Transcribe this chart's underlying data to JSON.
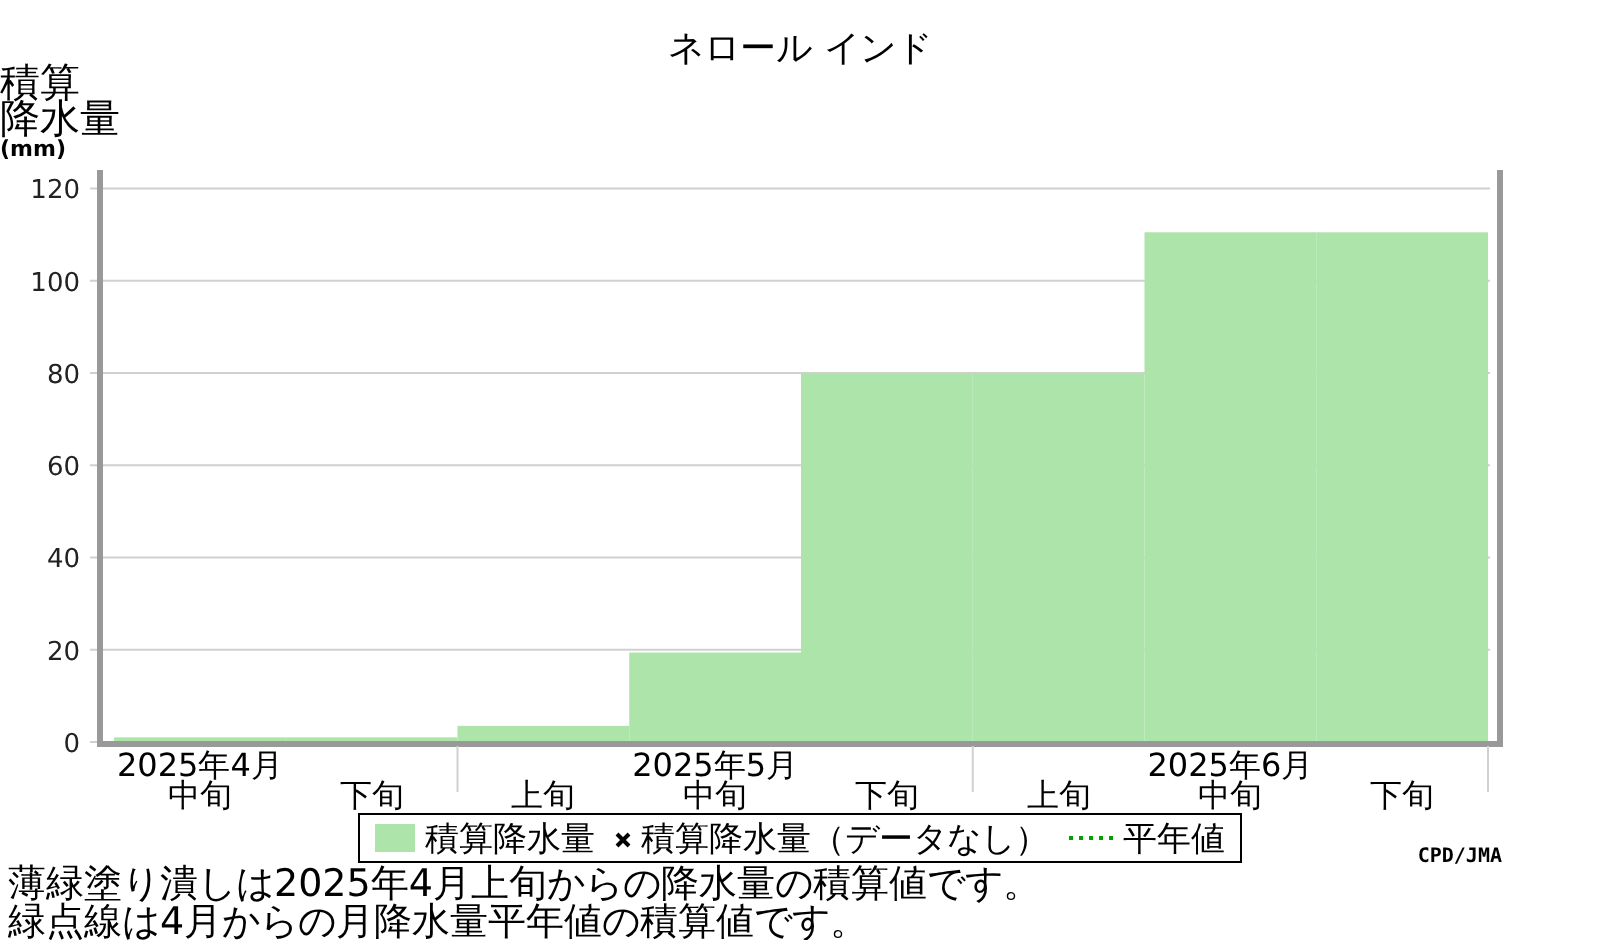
{
  "chart_data": {
    "type": "bar",
    "title": "ネロール インド",
    "ylabel": "積算降水量(mm)",
    "categories": [
      "2025年4月中旬",
      "下旬",
      "上旬",
      "2025年5月中旬",
      "下旬",
      "上旬",
      "2025年6月中旬",
      "下旬"
    ],
    "series": [
      {
        "name": "積算降水量",
        "color": "#ace4aa",
        "values": [
          1,
          1,
          3.5,
          19.4,
          80,
          80,
          110.5,
          110.5
        ]
      },
      {
        "name": "積算降水量（データなし）",
        "type": "scatter",
        "marker": "cross",
        "color": "#000000",
        "values": [
          null,
          null,
          null,
          null,
          null,
          null,
          null,
          null
        ]
      },
      {
        "name": "平年値",
        "type": "line",
        "line_style": "dotted",
        "color": "#00a000",
        "values": [
          null,
          null,
          null,
          null,
          null,
          null,
          null,
          null
        ]
      }
    ],
    "ylim": [
      0,
      124
    ],
    "yticks": [
      0,
      20,
      40,
      60,
      80,
      100,
      120
    ],
    "grid": "y",
    "legend": "bottom",
    "annotations": [
      "CPD/JMA",
      "薄緑塗り潰しは2025年4月上旬からの降水量の積算値です。",
      "緑点線は4月からの月降水量平年値の積算値です。"
    ]
  }
}
